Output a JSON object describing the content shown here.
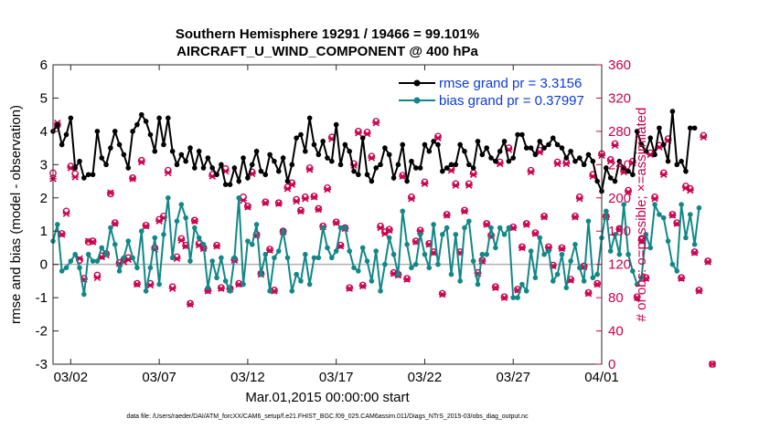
{
  "chart_data": {
    "type": "line",
    "title": "Southern Hemisphere 19291 / 19466 = 99.101%",
    "subtitle": "AIRCRAFT_U_WIND_COMPONENT @ 400 hPa",
    "xlabel": "Mar.01,2015 00:00:00 start",
    "ylabel": "rmse and bias (model - observation)",
    "y2label": "# of obs: o=possible; ×=assimilated",
    "footnote": "data file: /Users/raeder/DAI/ATM_forcXX/CAM6_setup/f.e21.FHIST_BGC.f09_025.CAM6assim.011/Diags_NTrS_2015-03/obs_diag_output.nc",
    "xlim": [
      0,
      31
    ],
    "ylim": [
      -3,
      6
    ],
    "y2lim": [
      0,
      360
    ],
    "x_ticks": [
      1,
      6,
      11,
      16,
      21,
      26,
      31
    ],
    "x_tick_labels": [
      "03/02",
      "03/07",
      "03/12",
      "03/17",
      "03/22",
      "03/27",
      "04/01"
    ],
    "y_ticks": [
      -3,
      -2,
      -1,
      0,
      1,
      2,
      3,
      4,
      5,
      6
    ],
    "y2_ticks": [
      0,
      40,
      80,
      120,
      160,
      200,
      240,
      280,
      320,
      360
    ],
    "y2_tick_labels": [
      "0",
      "40",
      "80",
      "120",
      "160",
      "200",
      "240",
      "280",
      "320",
      "360"
    ],
    "zero_line": 0,
    "legend_position": "top-right",
    "series": [
      {
        "name": "rmse grand pr = 3.3156",
        "color": "#000000",
        "axis": "left",
        "start": 0.0,
        "step": 0.25,
        "values": [
          4.0,
          4.2,
          3.6,
          3.9,
          4.4,
          2.9,
          3.1,
          2.6,
          2.7,
          2.7,
          4.0,
          3.2,
          3.0,
          3.5,
          4.0,
          3.6,
          3.3,
          2.9,
          4.0,
          4.2,
          4.5,
          4.3,
          3.9,
          3.4,
          4.4,
          3.6,
          4.4,
          3.4,
          3.0,
          3.3,
          3.1,
          3.5,
          2.9,
          3.4,
          2.9,
          3.2,
          2.9,
          2.7,
          3.0,
          2.4,
          2.4,
          2.9,
          2.5,
          3.2,
          2.6,
          3.0,
          3.4,
          2.8,
          2.7,
          3.3,
          3.1,
          2.8,
          3.2,
          2.5,
          3.0,
          3.8,
          3.9,
          3.4,
          4.4,
          3.6,
          3.3,
          3.7,
          3.2,
          3.1,
          4.2,
          3.0,
          3.6,
          3.4,
          2.8,
          2.7,
          3.8,
          2.7,
          2.5,
          2.9,
          3.0,
          3.5,
          3.3,
          2.6,
          3.0,
          3.6,
          2.5,
          3.1,
          2.9,
          2.9,
          3.6,
          3.4,
          3.7,
          3.6,
          2.8,
          2.9,
          3.0,
          3.0,
          3.6,
          3.4,
          3.0,
          2.9,
          3.7,
          3.3,
          3.5,
          3.2,
          3.1,
          3.4,
          3.7,
          3.1,
          3.2,
          3.9,
          3.9,
          3.5,
          3.5,
          3.3,
          3.7,
          3.5,
          3.6,
          3.8,
          3.6,
          3.5,
          3.2,
          3.4,
          3.1,
          3.2,
          3.0,
          3.3,
          3.1,
          2.5,
          2.2,
          2.9,
          2.6,
          2.5,
          3.1,
          2.9,
          2.8,
          2.7,
          4.0,
          3.6,
          3.4,
          3.8,
          3.3,
          4.1,
          3.6,
          3.1,
          4.6,
          3.0,
          3.1,
          2.8,
          4.1,
          4.1
        ],
        "marker": "circle"
      },
      {
        "name": "bias grand pr = 0.37997",
        "color": "#138787",
        "axis": "left",
        "start": 0.0,
        "step": 0.25,
        "values": [
          0.7,
          1.2,
          -0.2,
          -0.1,
          0.1,
          0.3,
          -0.1,
          -0.9,
          0.3,
          0.1,
          0.1,
          0.5,
          0.3,
          1.1,
          0.6,
          -0.2,
          0.2,
          0.7,
          0.2,
          -0.1,
          1.0,
          -0.8,
          -0.1,
          0.8,
          -0.6,
          0.9,
          2.0,
          0.2,
          1.3,
          1.8,
          1.4,
          0.1,
          1.1,
          0.8,
          0.6,
          -0.7,
          0.1,
          -0.4,
          0.2,
          -0.5,
          -0.8,
          0.2,
          2.0,
          -0.6,
          0.7,
          0.6,
          1.2,
          -0.3,
          0.3,
          -0.8,
          0.2,
          0.4,
          1.0,
          0.2,
          -0.8,
          -0.3,
          -0.5,
          0.3,
          -0.6,
          0.2,
          0.2,
          1.1,
          0.5,
          0.2,
          0.4,
          1.1,
          1.1,
          0.4,
          -0.1,
          -0.2,
          0.5,
          0.1,
          -0.5,
          0.4,
          -0.8,
          0.0,
          0.8,
          0.3,
          -0.3,
          1.6,
          0.6,
          -0.1,
          0.0,
          0.9,
          0.3,
          -0.1,
          1.2,
          0.0,
          0.9,
          1.1,
          -0.3,
          0.9,
          -0.5,
          1.1,
          1.3,
          0.1,
          -0.6,
          0.3,
          0.3,
          1.1,
          0.5,
          1.1,
          0.9,
          1.1,
          -1.0,
          -1.0,
          -0.6,
          -0.8,
          0.4,
          -0.4,
          0.8,
          0.3,
          0.4,
          -0.5,
          -0.3,
          0.3,
          -0.7,
          0.1,
          0.6,
          -0.1,
          -0.5,
          1.3,
          -0.4,
          -0.3,
          0.8,
          1.6,
          0.4,
          0.9,
          0.3,
          1.8,
          0.3,
          -0.2,
          -0.6,
          -0.4,
          0.9,
          0.5,
          1.8,
          1.5,
          1.4,
          0.7,
          0.0,
          -0.2,
          1.8,
          0.8,
          1.5,
          0.6,
          1.7
        ],
        "marker": "circle"
      },
      {
        "name": "# obs possible",
        "color": "#c8004e",
        "axis": "right",
        "marker": "o",
        "start": 0.0,
        "step": 0.25,
        "values": [
          230,
          287,
          157,
          184,
          238,
          229,
          125,
          103,
          147,
          148,
          107,
          130,
          133,
          205,
          170,
          122,
          126,
          128,
          224,
          97,
          245,
          167,
          97,
          140,
          174,
          178,
          233,
          93,
          129,
          151,
          143,
          73,
          173,
          145,
          140,
          89,
          228,
          143,
          92,
          235,
          91,
          126,
          97,
          201,
          190,
          231,
          156,
          109,
          195,
          138,
          89,
          194,
          160,
          213,
          218,
          198,
          185,
          201,
          236,
          202,
          187,
          166,
          212,
          273,
          171,
          143,
          164,
          92,
          241,
          280,
          95,
          279,
          250,
          292,
          166,
          159,
          162,
          110,
          108,
          227,
          103,
          201,
          148,
          161,
          219,
          145,
          135,
          274,
          85,
          180,
          235,
          217,
          135,
          185,
          217,
          230,
          110,
          125,
          169,
          155,
          93,
          243,
          81,
          260,
          165,
          90,
          141,
          169,
          233,
          158,
          257,
          178,
          141,
          119,
          243,
          140,
          243,
          102,
          178,
          201,
          118,
          86,
          228,
          97,
          253,
          178,
          246,
          265,
          163,
          233,
          209,
          244,
          81,
          150,
          104,
          254,
          201,
          263,
          230,
          271,
          180,
          170,
          104,
          214,
          211,
          135,
          89,
          275,
          124,
          0
        ]
      },
      {
        "name": "# obs assimilated",
        "color": "#c8004e",
        "axis": "right",
        "marker": "x",
        "start": 0.0,
        "step": 0.25,
        "values": [
          223,
          290,
          156,
          181,
          236,
          225,
          127,
          102,
          148,
          147,
          104,
          129,
          131,
          206,
          169,
          121,
          123,
          126,
          223,
          96,
          243,
          166,
          95,
          138,
          172,
          176,
          230,
          91,
          127,
          149,
          142,
          72,
          172,
          143,
          139,
          88,
          226,
          142,
          91,
          232,
          90,
          125,
          96,
          197,
          189,
          229,
          155,
          108,
          194,
          137,
          88,
          193,
          159,
          211,
          216,
          196,
          184,
          199,
          234,
          201,
          186,
          165,
          210,
          271,
          170,
          142,
          163,
          91,
          239,
          278,
          94,
          277,
          248,
          290,
          164,
          157,
          161,
          109,
          107,
          226,
          102,
          199,
          147,
          160,
          217,
          144,
          134,
          272,
          84,
          179,
          233,
          215,
          134,
          184,
          215,
          228,
          109,
          124,
          168,
          154,
          92,
          241,
          80,
          258,
          164,
          89,
          140,
          168,
          231,
          157,
          255,
          177,
          140,
          118,
          241,
          139,
          241,
          101,
          177,
          199,
          117,
          85,
          226,
          96,
          251,
          177,
          244,
          263,
          162,
          231,
          207,
          242,
          80,
          149,
          103,
          252,
          199,
          261,
          228,
          269,
          179,
          169,
          103,
          212,
          209,
          134,
          88,
          273,
          123,
          0
        ]
      }
    ]
  }
}
